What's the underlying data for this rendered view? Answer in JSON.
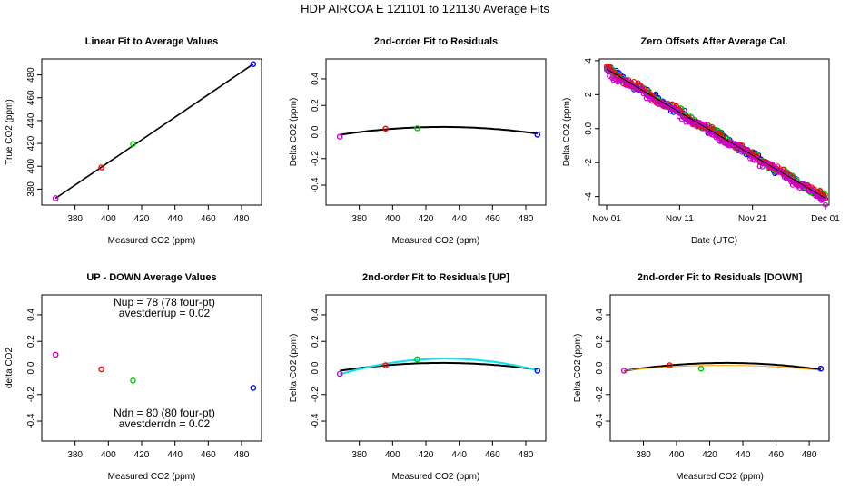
{
  "figure": {
    "title": "HDP    AIRCOA E    121101 to 121130    Average Fits"
  },
  "colors": {
    "black": "#000000",
    "red": "#ff0000",
    "green": "#00cc00",
    "blue": "#0000ff",
    "magenta": "#cc00cc",
    "purple": "#a020f0",
    "cyan": "#00e5ee",
    "orange": "#ffa500"
  },
  "chart_data": [
    {
      "id": "p1",
      "type": "scatter",
      "title": "Linear Fit to Average Values",
      "xlabel": "Measured CO2 (ppm)",
      "ylabel": "True CO2 (ppm)",
      "xlim": [
        360,
        492
      ],
      "ylim": [
        366,
        494
      ],
      "xticks": [
        380,
        400,
        420,
        440,
        460,
        480
      ],
      "yticks": [
        380,
        400,
        420,
        440,
        460,
        480
      ],
      "series": [
        {
          "color": "magenta",
          "points": [
            [
              368.3,
              372.0
            ]
          ]
        },
        {
          "color": "red",
          "points": [
            [
              395.8,
              399.0
            ]
          ]
        },
        {
          "color": "green",
          "points": [
            [
              414.8,
              419.5
            ]
          ]
        },
        {
          "color": "blue",
          "points": [
            [
              487.0,
              489.5
            ]
          ]
        }
      ],
      "lines": [
        {
          "color": "black",
          "points": [
            [
              368.3,
              372.0
            ],
            [
              487.0,
              489.5
            ]
          ]
        }
      ]
    },
    {
      "id": "p2",
      "type": "scatter",
      "title": "2nd-order Fit to Residuals",
      "xlabel": "Measured CO2 (ppm)",
      "ylabel": "Delta CO2 (ppm)",
      "xlim": [
        360,
        492
      ],
      "ylim": [
        -0.55,
        0.55
      ],
      "xticks": [
        380,
        400,
        420,
        440,
        460,
        480
      ],
      "yticks": [
        -0.4,
        -0.2,
        0.0,
        0.2,
        0.4
      ],
      "series": [
        {
          "color": "magenta",
          "points": [
            [
              368.3,
              -0.035
            ]
          ]
        },
        {
          "color": "red",
          "points": [
            [
              395.8,
              0.025
            ]
          ]
        },
        {
          "color": "green",
          "points": [
            [
              414.8,
              0.028
            ]
          ]
        },
        {
          "color": "blue",
          "points": [
            [
              487.0,
              -0.02
            ]
          ]
        }
      ],
      "curves": [
        {
          "color": "black",
          "x": [
            368.3,
            487.0
          ],
          "quad": {
            "x0": 430,
            "ymax": 0.038,
            "curv": -1.55e-05
          },
          "width": 2
        }
      ]
    },
    {
      "id": "p3",
      "type": "scatter",
      "title": "Zero Offsets After Average Cal.",
      "xlabel": "Date (UTC)",
      "ylabel": "Delta CO2 (ppm)",
      "xlim": [
        -1,
        30.5
      ],
      "ylim": [
        -4.5,
        4.1
      ],
      "xticks": [
        0,
        10,
        20,
        30
      ],
      "xticklabels": [
        "Nov 01",
        "Nov 11",
        "Nov 21",
        "Dec 01"
      ],
      "yticks": [
        -4,
        -2,
        0,
        2,
        4
      ],
      "trend": {
        "x0": 0,
        "y0": 3.5,
        "x1": 30,
        "y1": -4.1
      },
      "series_colors": [
        "blue",
        "green",
        "red",
        "magenta"
      ]
    },
    {
      "id": "p4",
      "type": "scatter",
      "title": "UP - DOWN Average Values",
      "xlabel": "Measured CO2 (ppm)",
      "ylabel": "delta CO2",
      "xlim": [
        360,
        492
      ],
      "ylim": [
        -0.55,
        0.55
      ],
      "xticks": [
        380,
        400,
        420,
        440,
        460,
        480
      ],
      "yticks": [
        -0.4,
        -0.2,
        0.0,
        0.2,
        0.4
      ],
      "series": [
        {
          "color": "magenta",
          "points": [
            [
              368.3,
              0.1
            ]
          ]
        },
        {
          "color": "red",
          "points": [
            [
              395.8,
              -0.01
            ]
          ]
        },
        {
          "color": "green",
          "points": [
            [
              414.8,
              -0.095
            ]
          ]
        },
        {
          "color": "blue",
          "points": [
            [
              487.0,
              -0.15
            ]
          ]
        }
      ],
      "annotations": {
        "nup": "Nup = 78 (78 four-pt)",
        "avestderrup": "avestderrup =  0.02",
        "ndn": "Ndn = 80 (80 four-pt)",
        "avestderrdn": "avestderrdn =  0.02"
      }
    },
    {
      "id": "p5",
      "type": "scatter",
      "title": "2nd-order Fit to Residuals [UP]",
      "xlabel": "Measured CO2 (ppm)",
      "ylabel": "Delta CO2 (ppm)",
      "xlim": [
        360,
        492
      ],
      "ylim": [
        -0.55,
        0.55
      ],
      "xticks": [
        380,
        400,
        420,
        440,
        460,
        480
      ],
      "yticks": [
        -0.4,
        -0.2,
        0.0,
        0.2,
        0.4
      ],
      "series": [
        {
          "color": "magenta",
          "points": [
            [
              368.3,
              -0.045
            ]
          ]
        },
        {
          "color": "red",
          "points": [
            [
              395.8,
              0.02
            ]
          ]
        },
        {
          "color": "green",
          "points": [
            [
              414.8,
              0.065
            ]
          ]
        },
        {
          "color": "blue",
          "points": [
            [
              487.0,
              -0.02
            ]
          ]
        }
      ],
      "curves": [
        {
          "color": "black",
          "x": [
            368.3,
            487.0
          ],
          "quad": {
            "x0": 430,
            "ymax": 0.038,
            "curv": -1.55e-05
          },
          "width": 2
        },
        {
          "color": "cyan",
          "x": [
            368.3,
            487.0
          ],
          "quad": {
            "x0": 432,
            "ymax": 0.07,
            "curv": -2.9e-05
          },
          "width": 2
        }
      ]
    },
    {
      "id": "p6",
      "type": "scatter",
      "title": "2nd-order Fit to Residuals [DOWN]",
      "xlabel": "Measured CO2 (ppm)",
      "ylabel": "Delta CO2 (ppm)",
      "xlim": [
        360,
        492
      ],
      "ylim": [
        -0.55,
        0.55
      ],
      "xticks": [
        380,
        400,
        420,
        440,
        460,
        480
      ],
      "yticks": [
        -0.4,
        -0.2,
        0.0,
        0.2,
        0.4
      ],
      "series": [
        {
          "color": "magenta",
          "points": [
            [
              368.3,
              -0.02
            ]
          ]
        },
        {
          "color": "red",
          "points": [
            [
              395.8,
              0.02
            ]
          ]
        },
        {
          "color": "green",
          "points": [
            [
              414.8,
              -0.005
            ]
          ]
        },
        {
          "color": "blue",
          "points": [
            [
              487.0,
              -0.005
            ]
          ]
        }
      ],
      "curves": [
        {
          "color": "black",
          "x": [
            368.3,
            487.0
          ],
          "quad": {
            "x0": 430,
            "ymax": 0.038,
            "curv": -1.55e-05
          },
          "width": 2
        },
        {
          "color": "orange",
          "x": [
            368.3,
            487.0
          ],
          "quad": {
            "x0": 428,
            "ymax": 0.02,
            "curv": -1.1e-05
          },
          "width": 1
        }
      ]
    }
  ]
}
